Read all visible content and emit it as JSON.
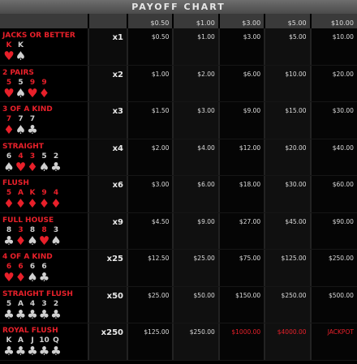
{
  "title": "PAYOFF CHART",
  "bet_headers": [
    "$0.50",
    "$1.00",
    "$3.00",
    "$5.00",
    "$10.00"
  ],
  "rows": [
    {
      "name": "JACKS OR BETTER",
      "multiplier": "x1",
      "cards": [
        {
          "rank": "K",
          "suit": "♥",
          "color": "red"
        },
        {
          "rank": "K",
          "suit": "♠",
          "color": "black"
        }
      ],
      "payouts": [
        "$0.50",
        "$1.00",
        "$3.00",
        "$5.00",
        "$10.00"
      ]
    },
    {
      "name": "2 PAIRS",
      "multiplier": "x2",
      "cards": [
        {
          "rank": "5",
          "suit": "♥",
          "color": "red"
        },
        {
          "rank": "5",
          "suit": "♠",
          "color": "black"
        },
        {
          "rank": "9",
          "suit": "♥",
          "color": "red"
        },
        {
          "rank": "9",
          "suit": "♦",
          "color": "red"
        }
      ],
      "payouts": [
        "$1.00",
        "$2.00",
        "$6.00",
        "$10.00",
        "$20.00"
      ]
    },
    {
      "name": "3 OF A KIND",
      "multiplier": "x3",
      "cards": [
        {
          "rank": "7",
          "suit": "♦",
          "color": "red"
        },
        {
          "rank": "7",
          "suit": "♠",
          "color": "black"
        },
        {
          "rank": "7",
          "suit": "♣",
          "color": "black"
        }
      ],
      "payouts": [
        "$1.50",
        "$3.00",
        "$9.00",
        "$15.00",
        "$30.00"
      ]
    },
    {
      "name": "STRAIGHT",
      "multiplier": "x4",
      "cards": [
        {
          "rank": "6",
          "suit": "♠",
          "color": "black"
        },
        {
          "rank": "4",
          "suit": "♥",
          "color": "red"
        },
        {
          "rank": "3",
          "suit": "♦",
          "color": "red"
        },
        {
          "rank": "5",
          "suit": "♠",
          "color": "black"
        },
        {
          "rank": "2",
          "suit": "♣",
          "color": "black"
        }
      ],
      "payouts": [
        "$2.00",
        "$4.00",
        "$12.00",
        "$20.00",
        "$40.00"
      ]
    },
    {
      "name": "FLUSH",
      "multiplier": "x6",
      "cards": [
        {
          "rank": "5",
          "suit": "♦",
          "color": "red"
        },
        {
          "rank": "A",
          "suit": "♦",
          "color": "red"
        },
        {
          "rank": "K",
          "suit": "♦",
          "color": "red"
        },
        {
          "rank": "9",
          "suit": "♦",
          "color": "red"
        },
        {
          "rank": "4",
          "suit": "♦",
          "color": "red"
        }
      ],
      "payouts": [
        "$3.00",
        "$6.00",
        "$18.00",
        "$30.00",
        "$60.00"
      ]
    },
    {
      "name": "FULL HOUSE",
      "multiplier": "x9",
      "cards": [
        {
          "rank": "8",
          "suit": "♣",
          "color": "black"
        },
        {
          "rank": "3",
          "suit": "♦",
          "color": "red"
        },
        {
          "rank": "8",
          "suit": "♠",
          "color": "black"
        },
        {
          "rank": "8",
          "suit": "♥",
          "color": "red"
        },
        {
          "rank": "3",
          "suit": "♠",
          "color": "black"
        }
      ],
      "payouts": [
        "$4.50",
        "$9.00",
        "$27.00",
        "$45.00",
        "$90.00"
      ]
    },
    {
      "name": "4 OF A KIND",
      "multiplier": "x25",
      "cards": [
        {
          "rank": "6",
          "suit": "♥",
          "color": "red"
        },
        {
          "rank": "6",
          "suit": "♦",
          "color": "red"
        },
        {
          "rank": "6",
          "suit": "♠",
          "color": "black"
        },
        {
          "rank": "6",
          "suit": "♣",
          "color": "black"
        }
      ],
      "payouts": [
        "$12.50",
        "$25.00",
        "$75.00",
        "$125.00",
        "$250.00"
      ]
    },
    {
      "name": "STRAIGHT FLUSH",
      "multiplier": "x50",
      "cards": [
        {
          "rank": "5",
          "suit": "♣",
          "color": "black"
        },
        {
          "rank": "A",
          "suit": "♣",
          "color": "black"
        },
        {
          "rank": "4",
          "suit": "♣",
          "color": "black"
        },
        {
          "rank": "3",
          "suit": "♣",
          "color": "black"
        },
        {
          "rank": "2",
          "suit": "♣",
          "color": "black"
        }
      ],
      "payouts": [
        "$25.00",
        "$50.00",
        "$150.00",
        "$250.00",
        "$500.00"
      ]
    },
    {
      "name": "ROYAL FLUSH",
      "multiplier": "x250",
      "cards": [
        {
          "rank": "K",
          "suit": "♣",
          "color": "black"
        },
        {
          "rank": "A",
          "suit": "♣",
          "color": "black"
        },
        {
          "rank": "J",
          "suit": "♣",
          "color": "black"
        },
        {
          "rank": "10",
          "suit": "♣",
          "color": "black"
        },
        {
          "rank": "Q",
          "suit": "♣",
          "color": "black"
        }
      ],
      "payouts": [
        "$125.00",
        "$250.00",
        "$1000.00",
        "$4000.00",
        "JACKPOT"
      ],
      "highlight_from": 2
    }
  ]
}
